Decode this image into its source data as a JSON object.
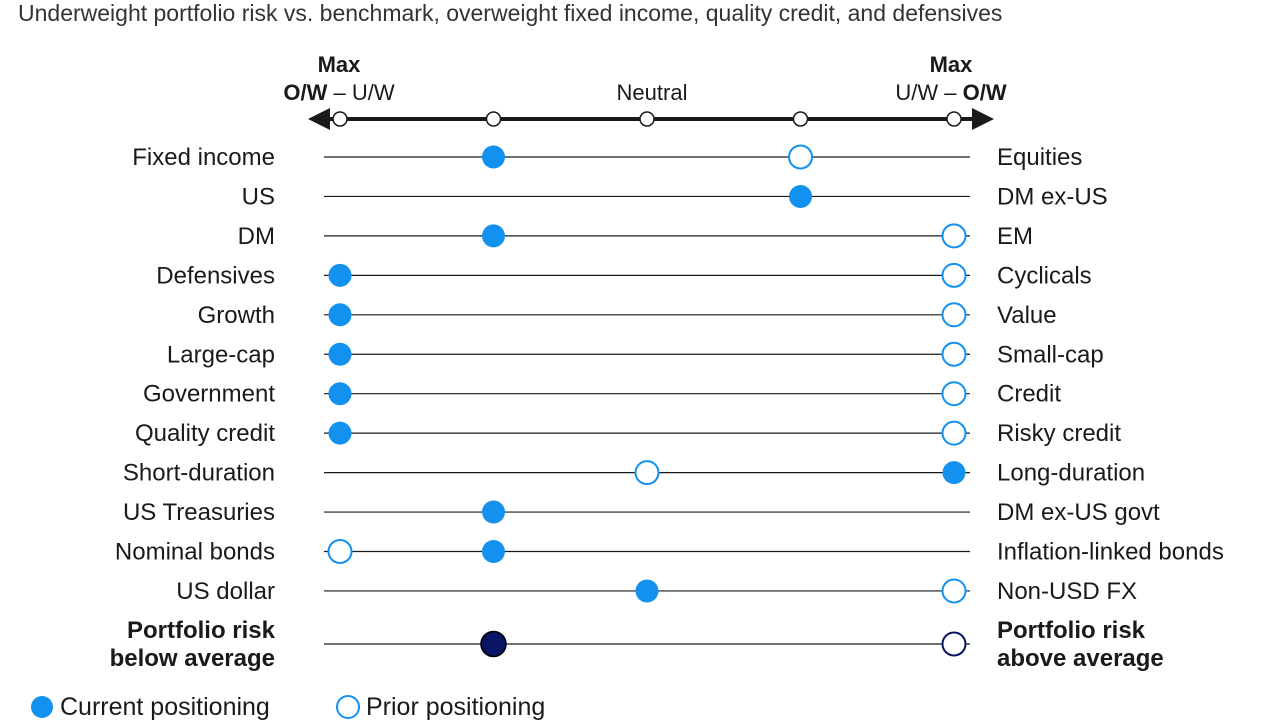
{
  "chart_data": {
    "type": "dot-positioning",
    "subtitle": "Underweight portfolio risk vs. benchmark, overweight fixed income, quality credit, and defensives",
    "scale": {
      "ticks": [
        -2,
        -1,
        0,
        1,
        2
      ],
      "left_header": {
        "top": "Max",
        "bold": "O/W",
        "dash": " – ",
        "rest": "U/W"
      },
      "center_header": "Neutral",
      "right_header": {
        "top": "Max",
        "rest": "U/W",
        "dash": " – ",
        "bold": "O/W"
      }
    },
    "rows": [
      {
        "left": "Fixed income",
        "right": "Equities",
        "current": -1,
        "prior": 1
      },
      {
        "left": "US",
        "right": "DM ex-US",
        "current": 1,
        "prior": null
      },
      {
        "left": "DM",
        "right": "EM",
        "current": -1,
        "prior": 2
      },
      {
        "left": "Defensives",
        "right": "Cyclicals",
        "current": -2,
        "prior": 2
      },
      {
        "left": "Growth",
        "right": "Value",
        "current": -2,
        "prior": 2
      },
      {
        "left": "Large-cap",
        "right": "Small-cap",
        "current": -2,
        "prior": 2
      },
      {
        "left": "Government",
        "right": "Credit",
        "current": -2,
        "prior": 2
      },
      {
        "left": "Quality credit",
        "right": "Risky credit",
        "current": -2,
        "prior": 2
      },
      {
        "left": "Short-duration",
        "right": "Long-duration",
        "current": 2,
        "prior": 0
      },
      {
        "left": "US Treasuries",
        "right": "DM ex-US govt",
        "current": -1,
        "prior": null
      },
      {
        "left": "Nominal bonds",
        "right": "Inflation-linked bonds",
        "current": -1,
        "prior": -2
      },
      {
        "left": "US dollar",
        "right": "Non-USD FX",
        "current": 0,
        "prior": 2
      }
    ],
    "risk_row": {
      "left": [
        "Portfolio risk",
        "below average"
      ],
      "right": [
        "Portfolio risk",
        "above average"
      ],
      "current": -1,
      "prior": 2
    },
    "legend": {
      "current": "Current positioning",
      "prior": "Prior positioning"
    }
  },
  "colors": {
    "current": "#1291ef",
    "prior_stroke": "#1291ef",
    "risk": "#0a1464",
    "line": "#1a1a1a"
  }
}
